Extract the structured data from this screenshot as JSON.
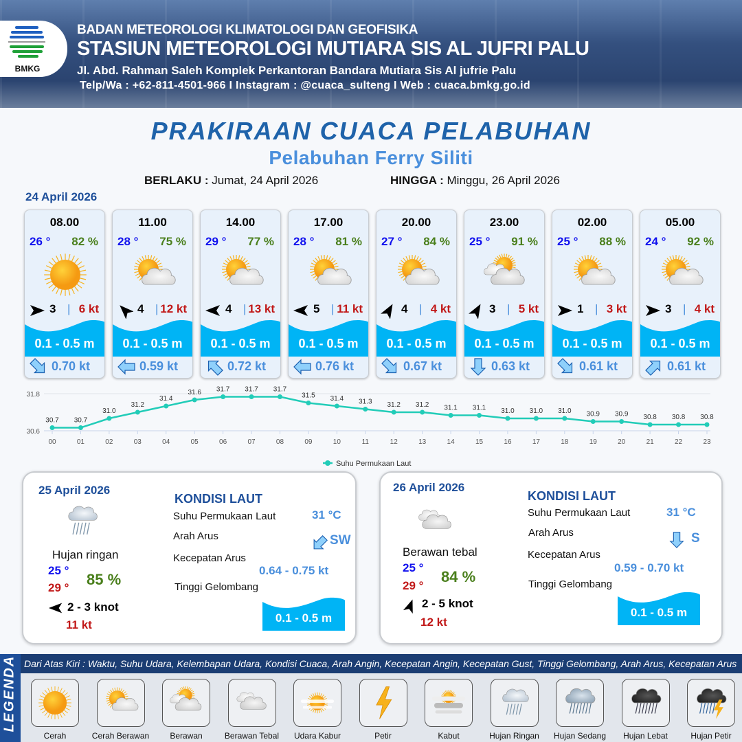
{
  "header": {
    "agency": "BADAN METEOROLOGI KLIMATOLOGI DAN GEOFISIKA",
    "station": "STASIUN METEOROLOGI MUTIARA SIS AL JUFRI PALU",
    "address": "Jl. Abd. Rahman Saleh Komplek Perkantoran Bandara Mutiara Sis Al jufrie Palu",
    "contact": "Telp/Wa : +62-811-4501-966  I  Instagram : @cuaca_sulteng  I  Web : cuaca.bmkg.go.id",
    "logo_text": "BMKG"
  },
  "title": "PRAKIRAAN CUACA PELABUHAN",
  "subtitle": "Pelabuhan Ferry Siliti",
  "validity": {
    "from_label": "BERLAKU :",
    "from": "Jumat, 24 April 2026",
    "to_label": "HINGGA :",
    "to": "Minggu, 26 April 2026"
  },
  "day1": {
    "date": "24 April 2026",
    "slots": [
      {
        "time": "08.00",
        "temp": "26 °",
        "hum": "82 %",
        "icon": "cerah",
        "wind_dir_deg": 90,
        "wind": "3",
        "gust": "6 kt",
        "wave": "0.1 - 0.5 m",
        "cur_dir_deg": 135,
        "cur": "0.70 kt"
      },
      {
        "time": "11.00",
        "temp": "28 °",
        "hum": "75 %",
        "icon": "cerah-berawan",
        "wind_dir_deg": 315,
        "wind": "4",
        "gust": "12 kt",
        "wave": "0.1 - 0.5 m",
        "cur_dir_deg": 270,
        "cur": "0.59 kt"
      },
      {
        "time": "14.00",
        "temp": "29 °",
        "hum": "77 %",
        "icon": "cerah-berawan",
        "wind_dir_deg": 270,
        "wind": "4",
        "gust": "13 kt",
        "wave": "0.1 - 0.5 m",
        "cur_dir_deg": 315,
        "cur": "0.72 kt"
      },
      {
        "time": "17.00",
        "temp": "28 °",
        "hum": "81 %",
        "icon": "cerah-berawan",
        "wind_dir_deg": 270,
        "wind": "5",
        "gust": "11 kt",
        "wave": "0.1 - 0.5 m",
        "cur_dir_deg": 270,
        "cur": "0.76 kt"
      },
      {
        "time": "20.00",
        "temp": "27 °",
        "hum": "84 %",
        "icon": "cerah-berawan",
        "wind_dir_deg": 30,
        "wind": "4",
        "gust": "4 kt",
        "wave": "0.1 - 0.5 m",
        "cur_dir_deg": 135,
        "cur": "0.67 kt"
      },
      {
        "time": "23.00",
        "temp": "25 °",
        "hum": "91 %",
        "icon": "berawan",
        "wind_dir_deg": 30,
        "wind": "3",
        "gust": "5 kt",
        "wave": "0.1 - 0.5 m",
        "cur_dir_deg": 180,
        "cur": "0.63 kt"
      },
      {
        "time": "02.00",
        "temp": "25 °",
        "hum": "88 %",
        "icon": "cerah-berawan",
        "wind_dir_deg": 90,
        "wind": "1",
        "gust": "3 kt",
        "wave": "0.1 - 0.5 m",
        "cur_dir_deg": 135,
        "cur": "0.61 kt"
      },
      {
        "time": "05.00",
        "temp": "24 °",
        "hum": "92 %",
        "icon": "cerah-berawan",
        "wind_dir_deg": 90,
        "wind": "3",
        "gust": "4 kt",
        "wave": "0.1 - 0.5 m",
        "cur_dir_deg": 45,
        "cur": "0.61 kt"
      }
    ]
  },
  "chart_data": {
    "type": "line",
    "x": [
      "00",
      "01",
      "02",
      "03",
      "04",
      "05",
      "06",
      "07",
      "08",
      "09",
      "10",
      "11",
      "12",
      "13",
      "14",
      "15",
      "16",
      "17",
      "18",
      "19",
      "20",
      "21",
      "22",
      "23"
    ],
    "series": [
      {
        "name": "Suhu Permukaan Laut",
        "values": [
          30.7,
          30.7,
          31.0,
          31.2,
          31.4,
          31.6,
          31.7,
          31.7,
          31.7,
          31.5,
          31.4,
          31.3,
          31.2,
          31.2,
          31.1,
          31.1,
          31.0,
          31.0,
          31.0,
          30.9,
          30.9,
          30.8,
          30.8,
          30.8
        ],
        "color": "#22ccb8"
      }
    ],
    "yticks": [
      "31.8",
      "30.6"
    ],
    "ylim": [
      30.6,
      31.8
    ],
    "grid": true,
    "legend": "bottom"
  },
  "days": [
    {
      "date": "25 April 2026",
      "icon": "hujan-ringan",
      "condition": "Hujan ringan",
      "tmin": "25 °",
      "tmax": "29 °",
      "hum": "85 %",
      "wind_dir_deg": 270,
      "wind": "2  - 3 knot",
      "gust": "11 kt",
      "sea": {
        "title": "KONDISI LAUT",
        "sst_label": "Suhu Permukaan Laut",
        "sst": "31 °C",
        "dir_label": "Arah Arus",
        "dir": "SW",
        "dir_deg": 225,
        "speed_label": "Kecepatan Arus",
        "speed": "0.64  - 0.75 kt",
        "wave_label": "Tinggi Gelombang",
        "wave": "0.1 - 0.5 m"
      }
    },
    {
      "date": "26 April 2026",
      "icon": "berawan-tebal",
      "condition": "Berawan tebal",
      "tmin": "25 °",
      "tmax": "29 °",
      "hum": "84 %",
      "wind_dir_deg": 20,
      "wind": "2  - 5 knot",
      "gust": "12 kt",
      "sea": {
        "title": "KONDISI LAUT",
        "sst_label": "Suhu Permukaan Laut",
        "sst": "31 °C",
        "dir_label": "Arah Arus",
        "dir": "S",
        "dir_deg": 180,
        "speed_label": "Kecepatan Arus",
        "speed": "0.59  - 0.70 kt",
        "wave_label": "Tinggi Gelombang",
        "wave": "0.1 - 0.5 m"
      }
    }
  ],
  "legend": {
    "side_label": "LEGENDA",
    "description": "Dari Atas Kiri : Waktu, Suhu Udara, Kelembapan Udara, Kondisi Cuaca, Arah Angin, Kecepatan Angin, Kecepatan Gust, Tinggi Gelombang, Arah Arus, Kecepatan Arus",
    "items": [
      {
        "icon": "cerah",
        "label": "Cerah"
      },
      {
        "icon": "cerah-berawan",
        "label": "Cerah Berawan"
      },
      {
        "icon": "berawan",
        "label": "Berawan"
      },
      {
        "icon": "berawan-tebal",
        "label": "Berawan Tebal"
      },
      {
        "icon": "udara-kabur",
        "label": "Udara Kabur"
      },
      {
        "icon": "petir",
        "label": "Petir"
      },
      {
        "icon": "kabut",
        "label": "Kabut"
      },
      {
        "icon": "hujan-ringan",
        "label": "Hujan Ringan"
      },
      {
        "icon": "hujan-sedang",
        "label": "Hujan Sedang"
      },
      {
        "icon": "hujan-lebat",
        "label": "Hujan Lebat"
      },
      {
        "icon": "hujan-petir",
        "label": "Hujan Petir"
      }
    ]
  },
  "colors": {
    "title": "#1f63aa",
    "wave": "#00b4f5",
    "temp": "#1010ee",
    "humidity": "#4a7f1c",
    "gust": "#c11818",
    "current": "#4a8fdc"
  }
}
